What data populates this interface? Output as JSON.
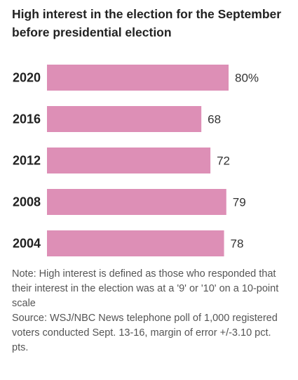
{
  "chart_data": {
    "type": "bar",
    "orientation": "horizontal",
    "title": "High interest in the election for the September before presidential election",
    "categories": [
      "2020",
      "2016",
      "2012",
      "2008",
      "2004"
    ],
    "values": [
      80,
      68,
      72,
      79,
      78
    ],
    "value_labels": [
      "80%",
      "68",
      "72",
      "79",
      "78"
    ],
    "xlim": [
      0,
      80
    ],
    "grid": false,
    "legend": "none",
    "bar_color": "#dd8fb6"
  },
  "notes": {
    "note": "Note: High interest is defined as those who responded that their interest in the election was at a '9' or '10' on a 10-point scale",
    "source": "Source: WSJ/NBC News telephone poll of 1,000 registered voters conducted Sept. 13-16, margin of error +/-3.10 pct. pts."
  }
}
